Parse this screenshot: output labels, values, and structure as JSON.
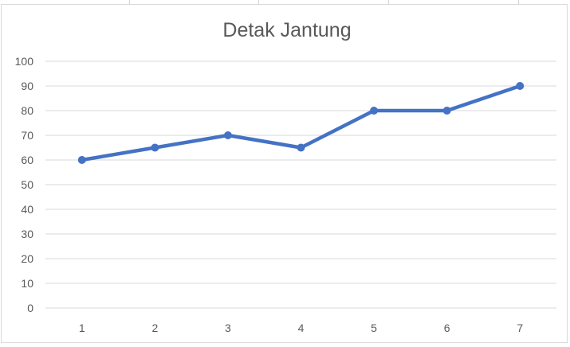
{
  "chart_data": {
    "type": "line",
    "title": "Detak Jantung",
    "xlabel": "",
    "ylabel": "",
    "categories": [
      "1",
      "2",
      "3",
      "4",
      "5",
      "6",
      "7"
    ],
    "series": [
      {
        "values": [
          60,
          65,
          70,
          65,
          80,
          80,
          90
        ]
      }
    ],
    "ylim": [
      0,
      100
    ],
    "yticks": [
      "0",
      "10",
      "20",
      "30",
      "40",
      "50",
      "60",
      "70",
      "80",
      "90",
      "100"
    ],
    "grid": true,
    "legend": "none",
    "line_color": "#4472C4",
    "gridline_color": "#d9d9d9",
    "text_color": "#595959"
  }
}
